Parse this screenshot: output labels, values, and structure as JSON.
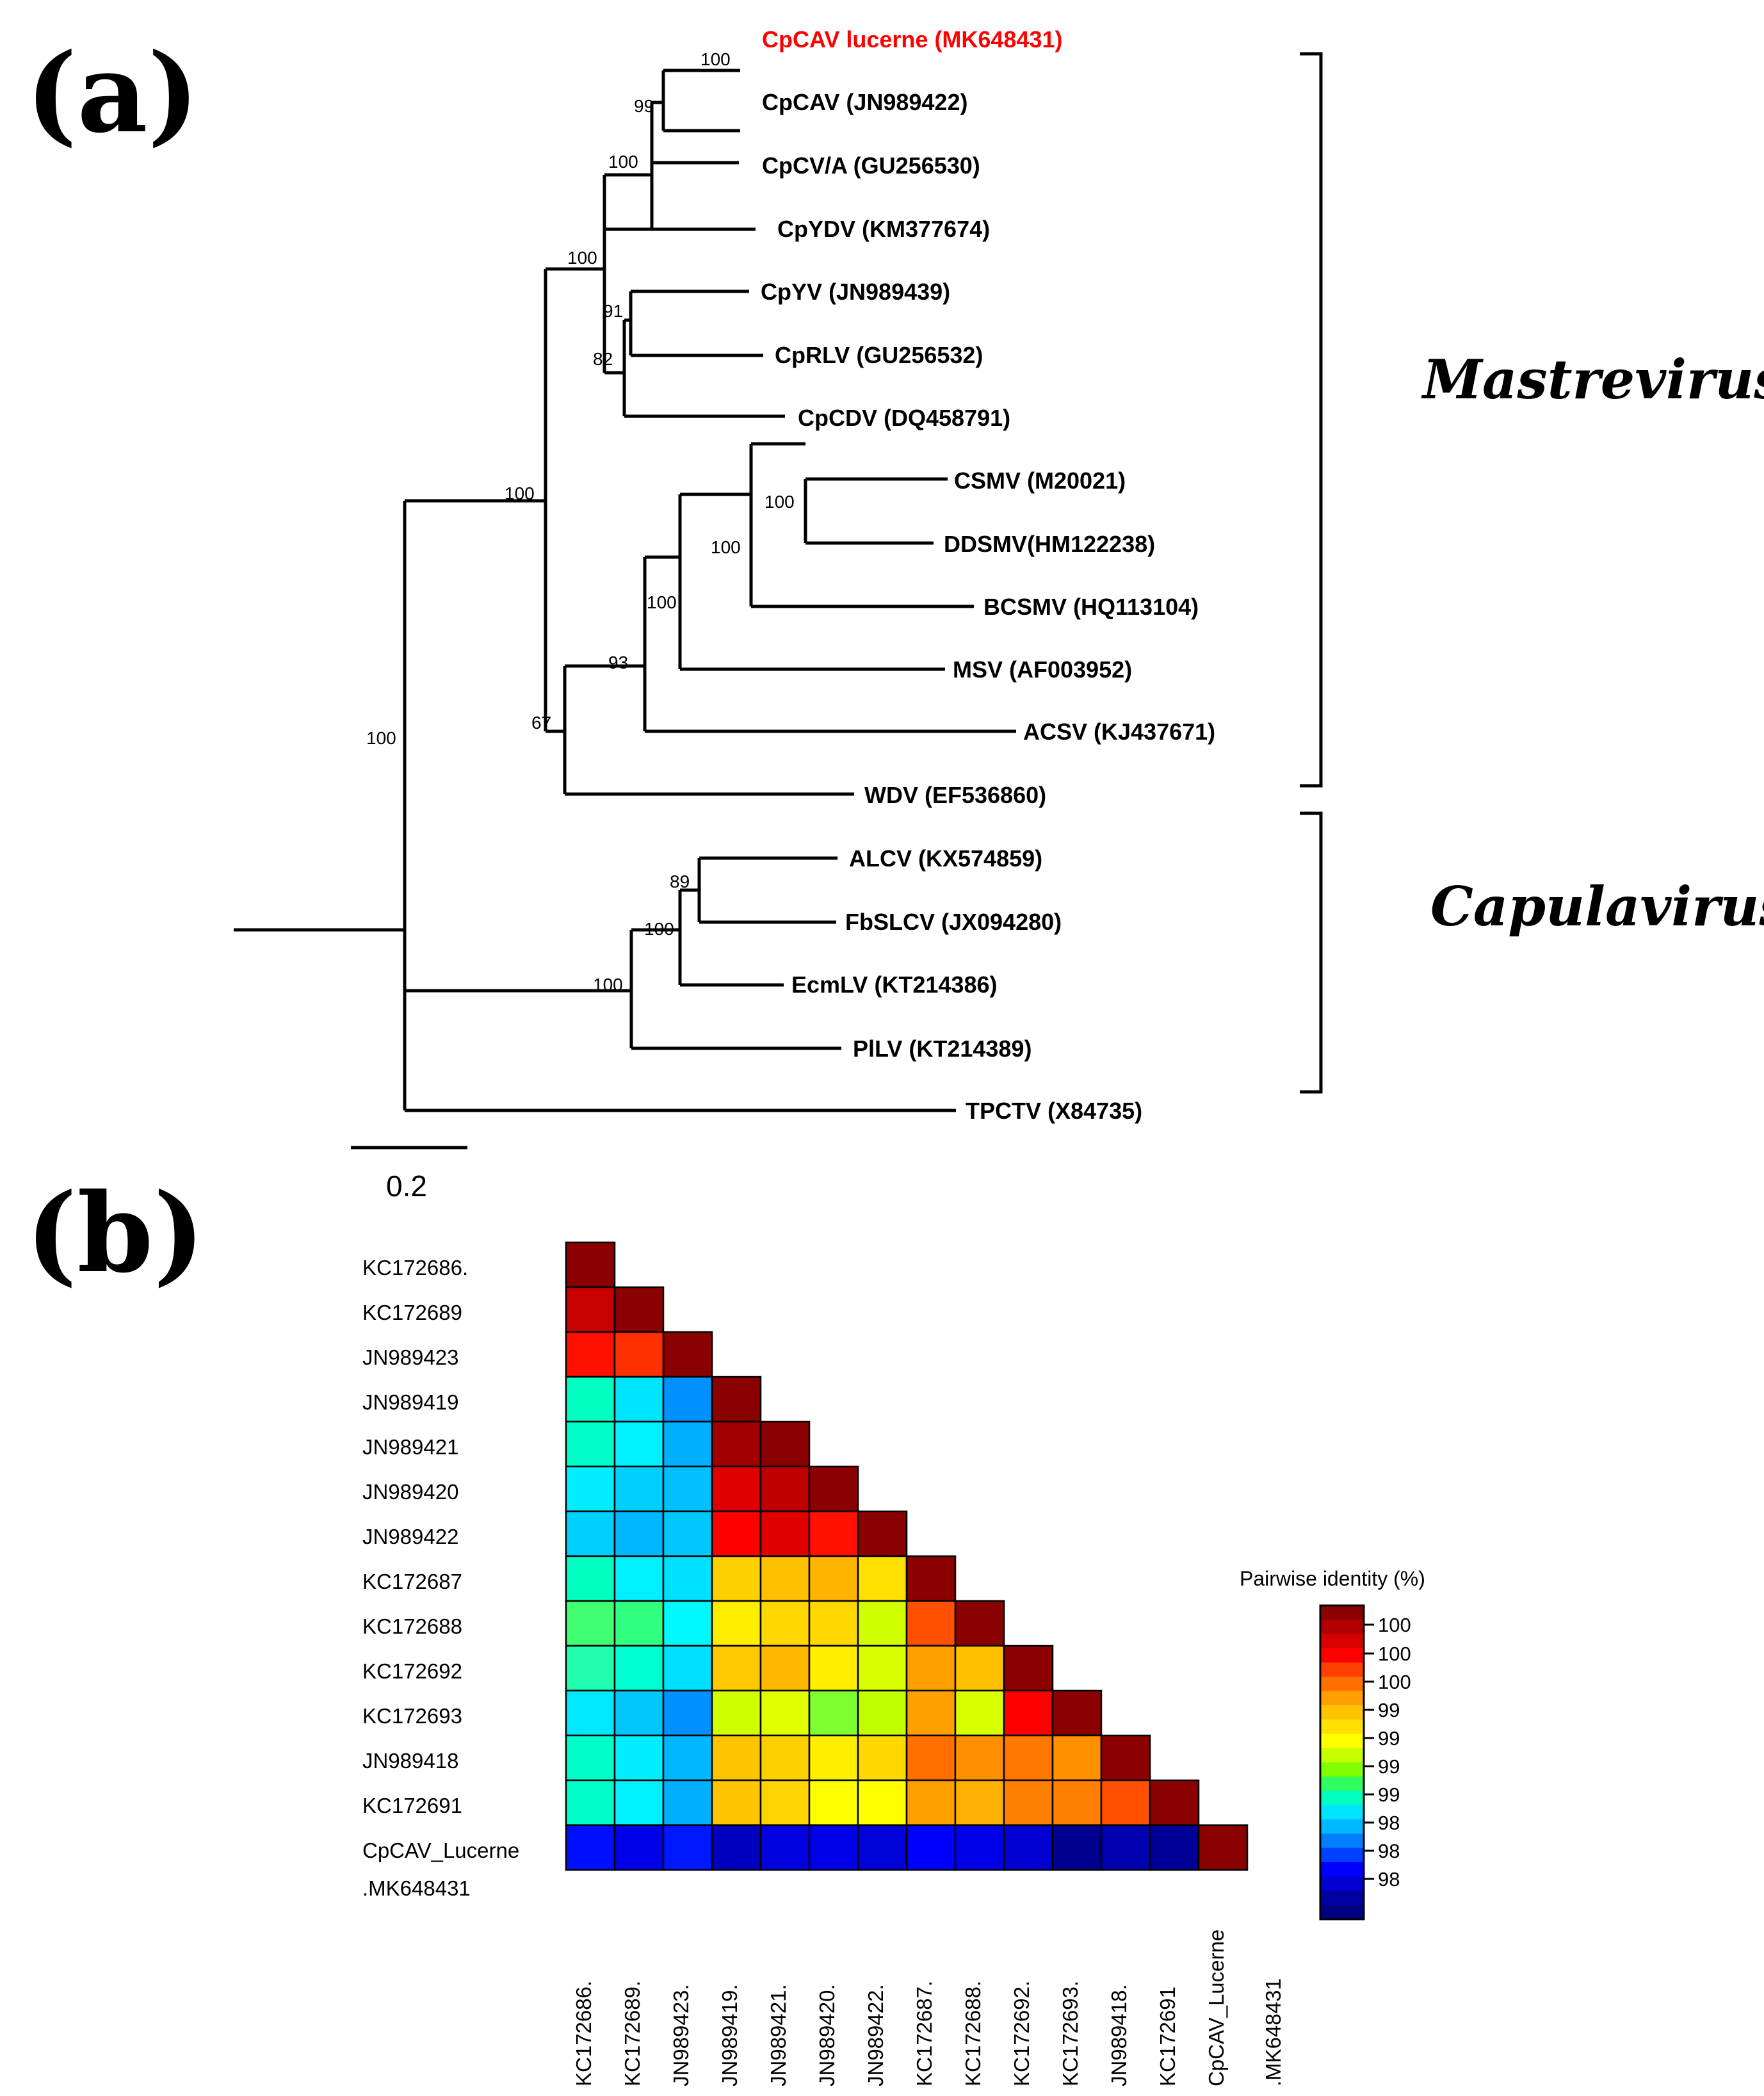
{
  "panel_a": {
    "label": "(a)",
    "genus_labels": [
      "Mastrevirus",
      "Capulavirus"
    ],
    "scale_bar_label": "0.2",
    "taxa": [
      {
        "name": "CpCAV lucerne (MK648431)",
        "highlight": true
      },
      {
        "name": "CpCAV (JN989422)"
      },
      {
        "name": "CpCV/A (GU256530)"
      },
      {
        "name": "CpYDV (KM377674)"
      },
      {
        "name": "CpYV (JN989439)"
      },
      {
        "name": "CpRLV (GU256532)"
      },
      {
        "name": "CpCDV (DQ458791)"
      },
      {
        "name": "CSMV (M20021)"
      },
      {
        "name": "DDSMV(HM122238)"
      },
      {
        "name": "BCSMV (HQ113104)"
      },
      {
        "name": "MSV (AF003952)"
      },
      {
        "name": "ACSV (KJ437671)"
      },
      {
        "name": "WDV (EF536860)"
      },
      {
        "name": "ALCV (KX574859)"
      },
      {
        "name": "FbSLCV (JX094280)"
      },
      {
        "name": "EcmLV (KT214386)"
      },
      {
        "name": "PlLV (KT214389)"
      },
      {
        "name": "TPCTV (X84735)"
      }
    ],
    "bootstrap_values": [
      "100",
      "99",
      "100",
      "100",
      "91",
      "82",
      "100",
      "100",
      "100",
      "93",
      "100",
      "67",
      "100",
      "89",
      "100",
      "100"
    ]
  },
  "panel_b": {
    "label": "(b)",
    "legend_title": "Pairwise identity (%)",
    "legend_ticks": [
      "100",
      "100",
      "100",
      "99",
      "99",
      "99",
      "99",
      "98",
      "98",
      "98"
    ],
    "legend_colors": [
      "#8b0000",
      "#b20000",
      "#d90000",
      "#ff0000",
      "#ff4000",
      "#ff7000",
      "#ffa000",
      "#ffc400",
      "#ffe000",
      "#ffff00",
      "#c8ff00",
      "#80ff00",
      "#30ff60",
      "#00ffc0",
      "#00e5ff",
      "#00b8ff",
      "#0080ff",
      "#0040ff",
      "#0000ff",
      "#0000d0",
      "#0000a0",
      "#000080"
    ],
    "row_labels": [
      "KC172686.",
      "KC172689",
      "JN989423",
      "JN989419",
      "JN989421",
      "JN989420",
      "JN989422",
      "KC172687",
      "KC172688",
      "KC172692",
      "KC172693",
      "JN989418",
      "KC172691",
      "CpCAV_Lucerne",
      ".MK648431"
    ],
    "col_labels": [
      "KC172686.",
      "KC172689.",
      "JN989423.",
      "JN989419.",
      "JN989421.",
      "JN989420.",
      "JN989422.",
      "KC172687.",
      "KC172688.",
      "KC172692.",
      "KC172693.",
      "JN989418.",
      "KC172691",
      "CpCAV_Lucerne",
      ".MK648431"
    ],
    "matrix_colors": [
      [
        "#8b0000"
      ],
      [
        "#c80000",
        "#8b0000"
      ],
      [
        "#ff1000",
        "#ff3000",
        "#8b0000"
      ],
      [
        "#00ffc0",
        "#00e5ff",
        "#0090ff",
        "#8b0000"
      ],
      [
        "#00ffc8",
        "#00f0ff",
        "#00b0ff",
        "#a00000",
        "#8b0000"
      ],
      [
        "#00eeff",
        "#00d0ff",
        "#00c0ff",
        "#e00000",
        "#c00000",
        "#8b0000"
      ],
      [
        "#00d0ff",
        "#00b8ff",
        "#00c8ff",
        "#ff0000",
        "#e00000",
        "#ff1000",
        "#8b0000"
      ],
      [
        "#00ffc0",
        "#00f0ff",
        "#00e0ff",
        "#ffd000",
        "#ffc000",
        "#ffb400",
        "#ffe000",
        "#8b0000"
      ],
      [
        "#40ff70",
        "#30ff80",
        "#00f8ff",
        "#ffee00",
        "#ffd800",
        "#ffd800",
        "#d0ff00",
        "#ff5000",
        "#8b0000"
      ],
      [
        "#20ffb0",
        "#00ffd0",
        "#00e0ff",
        "#ffc800",
        "#ffb800",
        "#ffee00",
        "#d8ff00",
        "#ffa000",
        "#ffc000",
        "#8b0000"
      ],
      [
        "#00e8ff",
        "#00c8ff",
        "#0090ff",
        "#d0ff00",
        "#e0ff00",
        "#80ff30",
        "#c0ff00",
        "#ffa000",
        "#d8ff00",
        "#ff0000",
        "#8b0000"
      ],
      [
        "#00ffc8",
        "#00eeff",
        "#00b8ff",
        "#ffc400",
        "#ffd000",
        "#ffee00",
        "#ffd800",
        "#ff7000",
        "#ff9000",
        "#ff7800",
        "#ff9000",
        "#8b0000"
      ],
      [
        "#00ffc8",
        "#00f0ff",
        "#00b0ff",
        "#ffc400",
        "#ffd400",
        "#ffff00",
        "#ffff00",
        "#ffa000",
        "#ffb000",
        "#ff8000",
        "#ff8000",
        "#ff5000",
        "#8b0000"
      ],
      [
        "#0010ff",
        "#0000e8",
        "#0018ff",
        "#0000c0",
        "#0000e0",
        "#0000e8",
        "#0000d8",
        "#0000ff",
        "#0000e8",
        "#0000d0",
        "#000090",
        "#0000b0",
        "#000098",
        "#8b0000"
      ]
    ]
  }
}
